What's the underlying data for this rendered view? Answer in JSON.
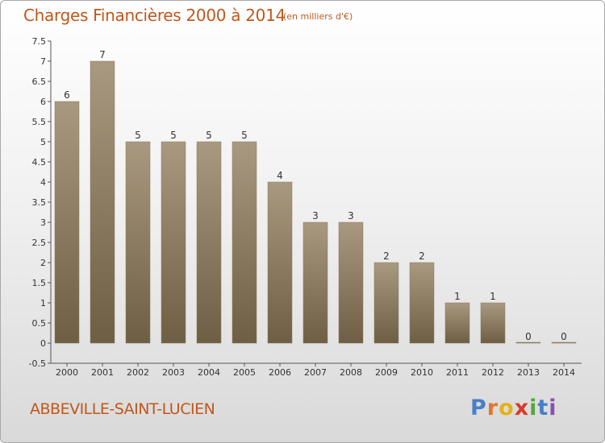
{
  "header": {
    "title": "Charges Financières 2000 à 2014",
    "subtitle": "(en milliers d'€)"
  },
  "footer": {
    "city": "ABBEVILLE-SAINT-LUCIEN",
    "logo_letters": [
      "P",
      "r",
      "o",
      "x",
      "i",
      "t",
      "i"
    ]
  },
  "colors": {
    "title": "#c0571c",
    "bar_light": "#a89980",
    "bar_dark": "#6e5e44",
    "axis": "#555555"
  },
  "chart_data": {
    "type": "bar",
    "categories": [
      "2000",
      "2001",
      "2002",
      "2003",
      "2004",
      "2005",
      "2006",
      "2007",
      "2008",
      "2009",
      "2010",
      "2011",
      "2012",
      "2013",
      "2014"
    ],
    "values": [
      6,
      7,
      5,
      5,
      5,
      5,
      4,
      3,
      3,
      2,
      2,
      1,
      1,
      0,
      0
    ],
    "data_labels": [
      "6",
      "7",
      "5",
      "5",
      "5",
      "5",
      "4",
      "3",
      "3",
      "2",
      "2",
      "1",
      "1",
      "0",
      "0"
    ],
    "y_ticks": [
      "-0.5",
      "0",
      "0.5",
      "1",
      "1.5",
      "2",
      "2.5",
      "3",
      "3.5",
      "4",
      "4.5",
      "5",
      "5.5",
      "6",
      "6.5",
      "7",
      "7.5"
    ],
    "ylim": [
      -0.5,
      7.5
    ],
    "grid": false,
    "legend": "none"
  }
}
